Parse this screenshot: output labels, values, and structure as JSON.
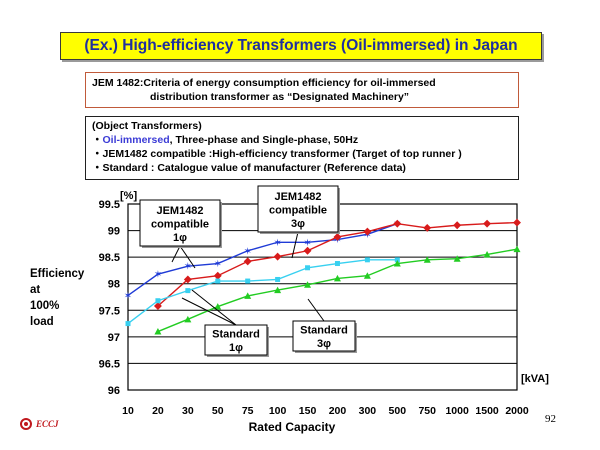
{
  "page": {
    "title": "(Ex.) High-efficiency Transformers (Oil-immersed) in Japan",
    "jem_line1": "JEM 1482:Criteria of energy consumption efficiency for oil-immersed",
    "jem_line2": "distribution transformer as “Designated Machinery”",
    "object_heading": "(Object Transformers)",
    "object_oil": "Oil-immersed",
    "object_oil_rest": ", Three-phase and Single-phase, 50Hz",
    "object_line2": "JEM1482 compatible :High-efficiency transformer (Target of top runner )",
    "object_line3": "Standard : Catalogue value of manufacturer (Reference data)",
    "bullet": "・",
    "page_number": "92",
    "logo_text": "ECCJ",
    "colors": {
      "title_bg": "#ffff00",
      "title_text": "#1f2fa0",
      "jem1_color": "#1f3bd6",
      "jem3_color": "#d81b1b",
      "std1_color": "#38d0f0",
      "std3_color": "#22cc22"
    }
  },
  "chart_data": {
    "type": "line",
    "title": "",
    "ylabel": "Efficiency at 100% load",
    "ylabel_lines": [
      "Efficiency",
      "at",
      "100%",
      " load"
    ],
    "yunit": "[%]",
    "xlabel": "Rated Capacity",
    "xunit": "[kVA]",
    "ylim": [
      96,
      99.5
    ],
    "yticks": [
      "99.5",
      "99",
      "98.5",
      "98",
      "97.5",
      "97",
      "96.5",
      "96"
    ],
    "categories": [
      "10",
      "20",
      "30",
      "50",
      "75",
      "100",
      "150",
      "200",
      "300",
      "500",
      "750",
      "1000",
      "1500",
      "2000"
    ],
    "series": [
      {
        "name": "JEM1482 compatible 1φ",
        "marker": "star",
        "values": [
          97.78,
          98.18,
          98.33,
          98.38,
          98.62,
          98.78,
          98.78,
          98.83,
          98.93,
          99.13,
          null,
          null,
          null,
          null
        ]
      },
      {
        "name": "JEM1482 compatible 3φ",
        "marker": "diamond",
        "values": [
          null,
          97.58,
          98.08,
          98.15,
          98.42,
          98.51,
          98.62,
          98.88,
          98.98,
          99.13,
          99.05,
          99.1,
          99.13,
          99.15
        ]
      },
      {
        "name": "Standard 1φ",
        "marker": "square",
        "values": [
          97.25,
          97.68,
          97.87,
          98.05,
          98.05,
          98.08,
          98.3,
          98.38,
          98.45,
          98.45,
          null,
          null,
          null,
          null
        ]
      },
      {
        "name": "Standard 3φ",
        "marker": "triangle",
        "values": [
          null,
          97.1,
          97.33,
          97.57,
          97.77,
          97.88,
          97.98,
          98.1,
          98.15,
          98.38,
          98.45,
          98.47,
          98.55,
          98.65
        ]
      }
    ],
    "callouts": [
      {
        "lines": [
          "JEM1482",
          "compatible",
          "1φ"
        ],
        "series": 0
      },
      {
        "lines": [
          "JEM1482",
          "compatible",
          "3φ"
        ],
        "series": 1
      },
      {
        "lines": [
          "Standard",
          "1φ"
        ],
        "series": 2
      },
      {
        "lines": [
          "Standard",
          "3φ"
        ],
        "series": 3
      }
    ]
  }
}
